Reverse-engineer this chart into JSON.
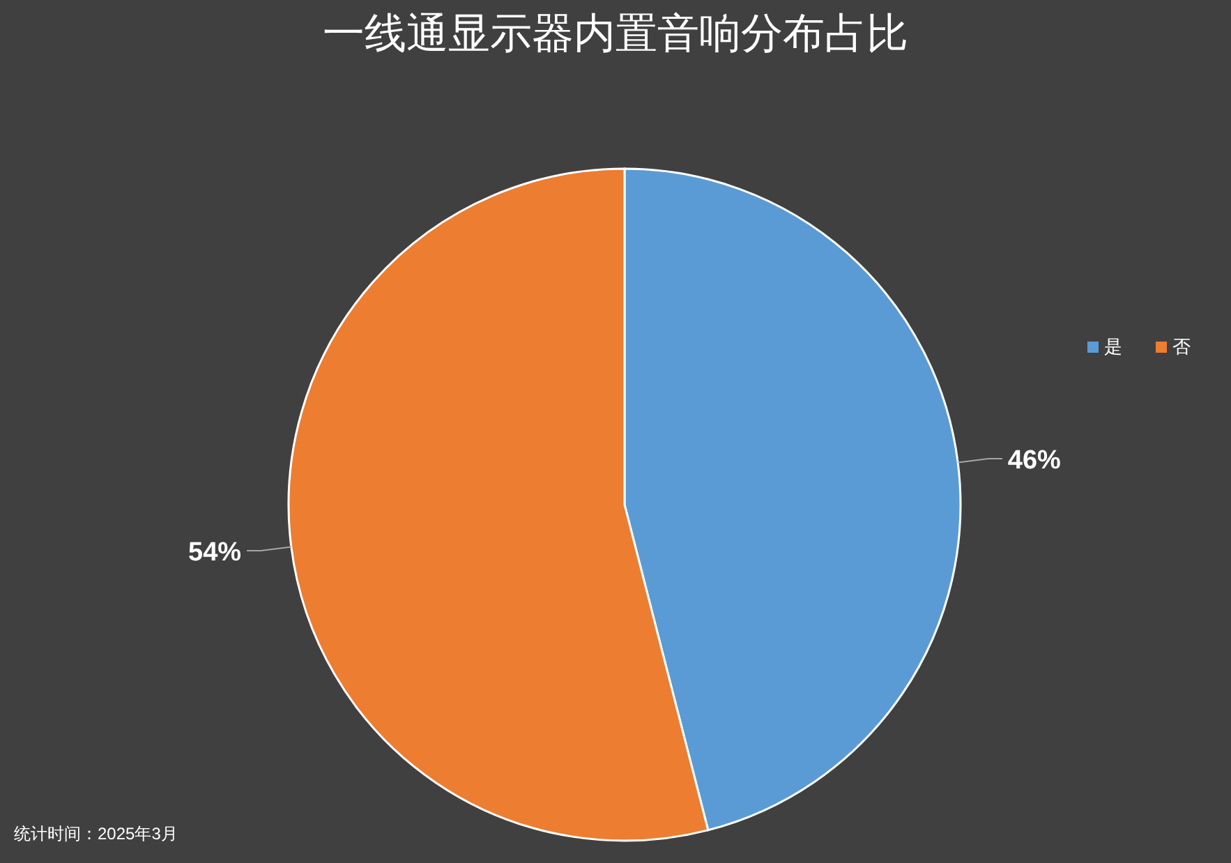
{
  "chart_data": {
    "type": "pie",
    "title": "一线通显示器内置音响分布占比",
    "categories": [
      "是",
      "否"
    ],
    "values": [
      46,
      54
    ],
    "colors": [
      "#5b9bd5",
      "#ed7d31"
    ],
    "value_labels": [
      "46%",
      "54%"
    ],
    "legend": "right",
    "annotations": [
      "统计时间：2025年3月"
    ]
  }
}
